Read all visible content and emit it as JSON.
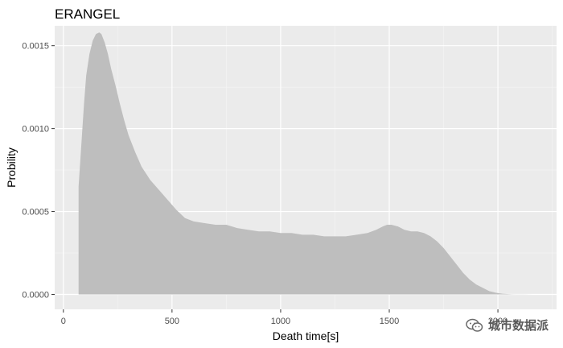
{
  "chart_data": {
    "type": "area",
    "title": "ERANGEL",
    "xlabel": "Death time[s]",
    "ylabel": "Probility",
    "xlim": [
      -40,
      2270
    ],
    "ylim": [
      -9e-05,
      0.00162
    ],
    "x_ticks": [
      0,
      500,
      1000,
      1500,
      2000
    ],
    "y_ticks": [
      0.0,
      0.0005,
      0.001,
      0.0015
    ],
    "y_tick_labels": [
      "0.0000",
      "0.0005",
      "0.0010",
      "0.0015"
    ],
    "grid": true,
    "fill_color": "#bebebe",
    "panel_color": "#ebebeb",
    "series": [
      {
        "x": [
          70,
          75,
          85,
          95,
          105,
          120,
          135,
          150,
          165,
          175,
          190,
          205,
          220,
          240,
          260,
          280,
          300,
          330,
          360,
          400,
          440,
          480,
          520,
          560,
          600,
          650,
          700,
          750,
          800,
          850,
          900,
          950,
          1000,
          1050,
          1100,
          1150,
          1200,
          1250,
          1300,
          1350,
          1400,
          1440,
          1470,
          1490,
          1510,
          1540,
          1570,
          1600,
          1630,
          1660,
          1690,
          1720,
          1750,
          1780,
          1810,
          1840,
          1870,
          1900,
          1930,
          1960,
          1990,
          2020,
          2050,
          2080,
          2120,
          2160,
          2200
        ],
        "y": [
          0.00065,
          0.00075,
          0.00095,
          0.00115,
          0.00132,
          0.00145,
          0.00153,
          0.00157,
          0.00158,
          0.00157,
          0.00152,
          0.00145,
          0.00136,
          0.00126,
          0.00115,
          0.00105,
          0.00096,
          0.00086,
          0.00077,
          0.00069,
          0.00063,
          0.00057,
          0.00051,
          0.00046,
          0.00044,
          0.00043,
          0.00042,
          0.00042,
          0.0004,
          0.00039,
          0.00038,
          0.00038,
          0.00037,
          0.00037,
          0.00036,
          0.00036,
          0.00035,
          0.00035,
          0.00035,
          0.00036,
          0.00037,
          0.00039,
          0.00041,
          0.00042,
          0.00042,
          0.00041,
          0.00039,
          0.00038,
          0.00038,
          0.00037,
          0.00035,
          0.00032,
          0.00028,
          0.00023,
          0.00018,
          0.00013,
          9e-05,
          6e-05,
          4e-05,
          2e-05,
          1e-05,
          4e-06,
          1.5e-06,
          5e-07,
          2e-07,
          1e-07,
          0.0
        ]
      }
    ]
  },
  "watermark": {
    "text": "城市数据派",
    "icon": "wechat-icon"
  }
}
